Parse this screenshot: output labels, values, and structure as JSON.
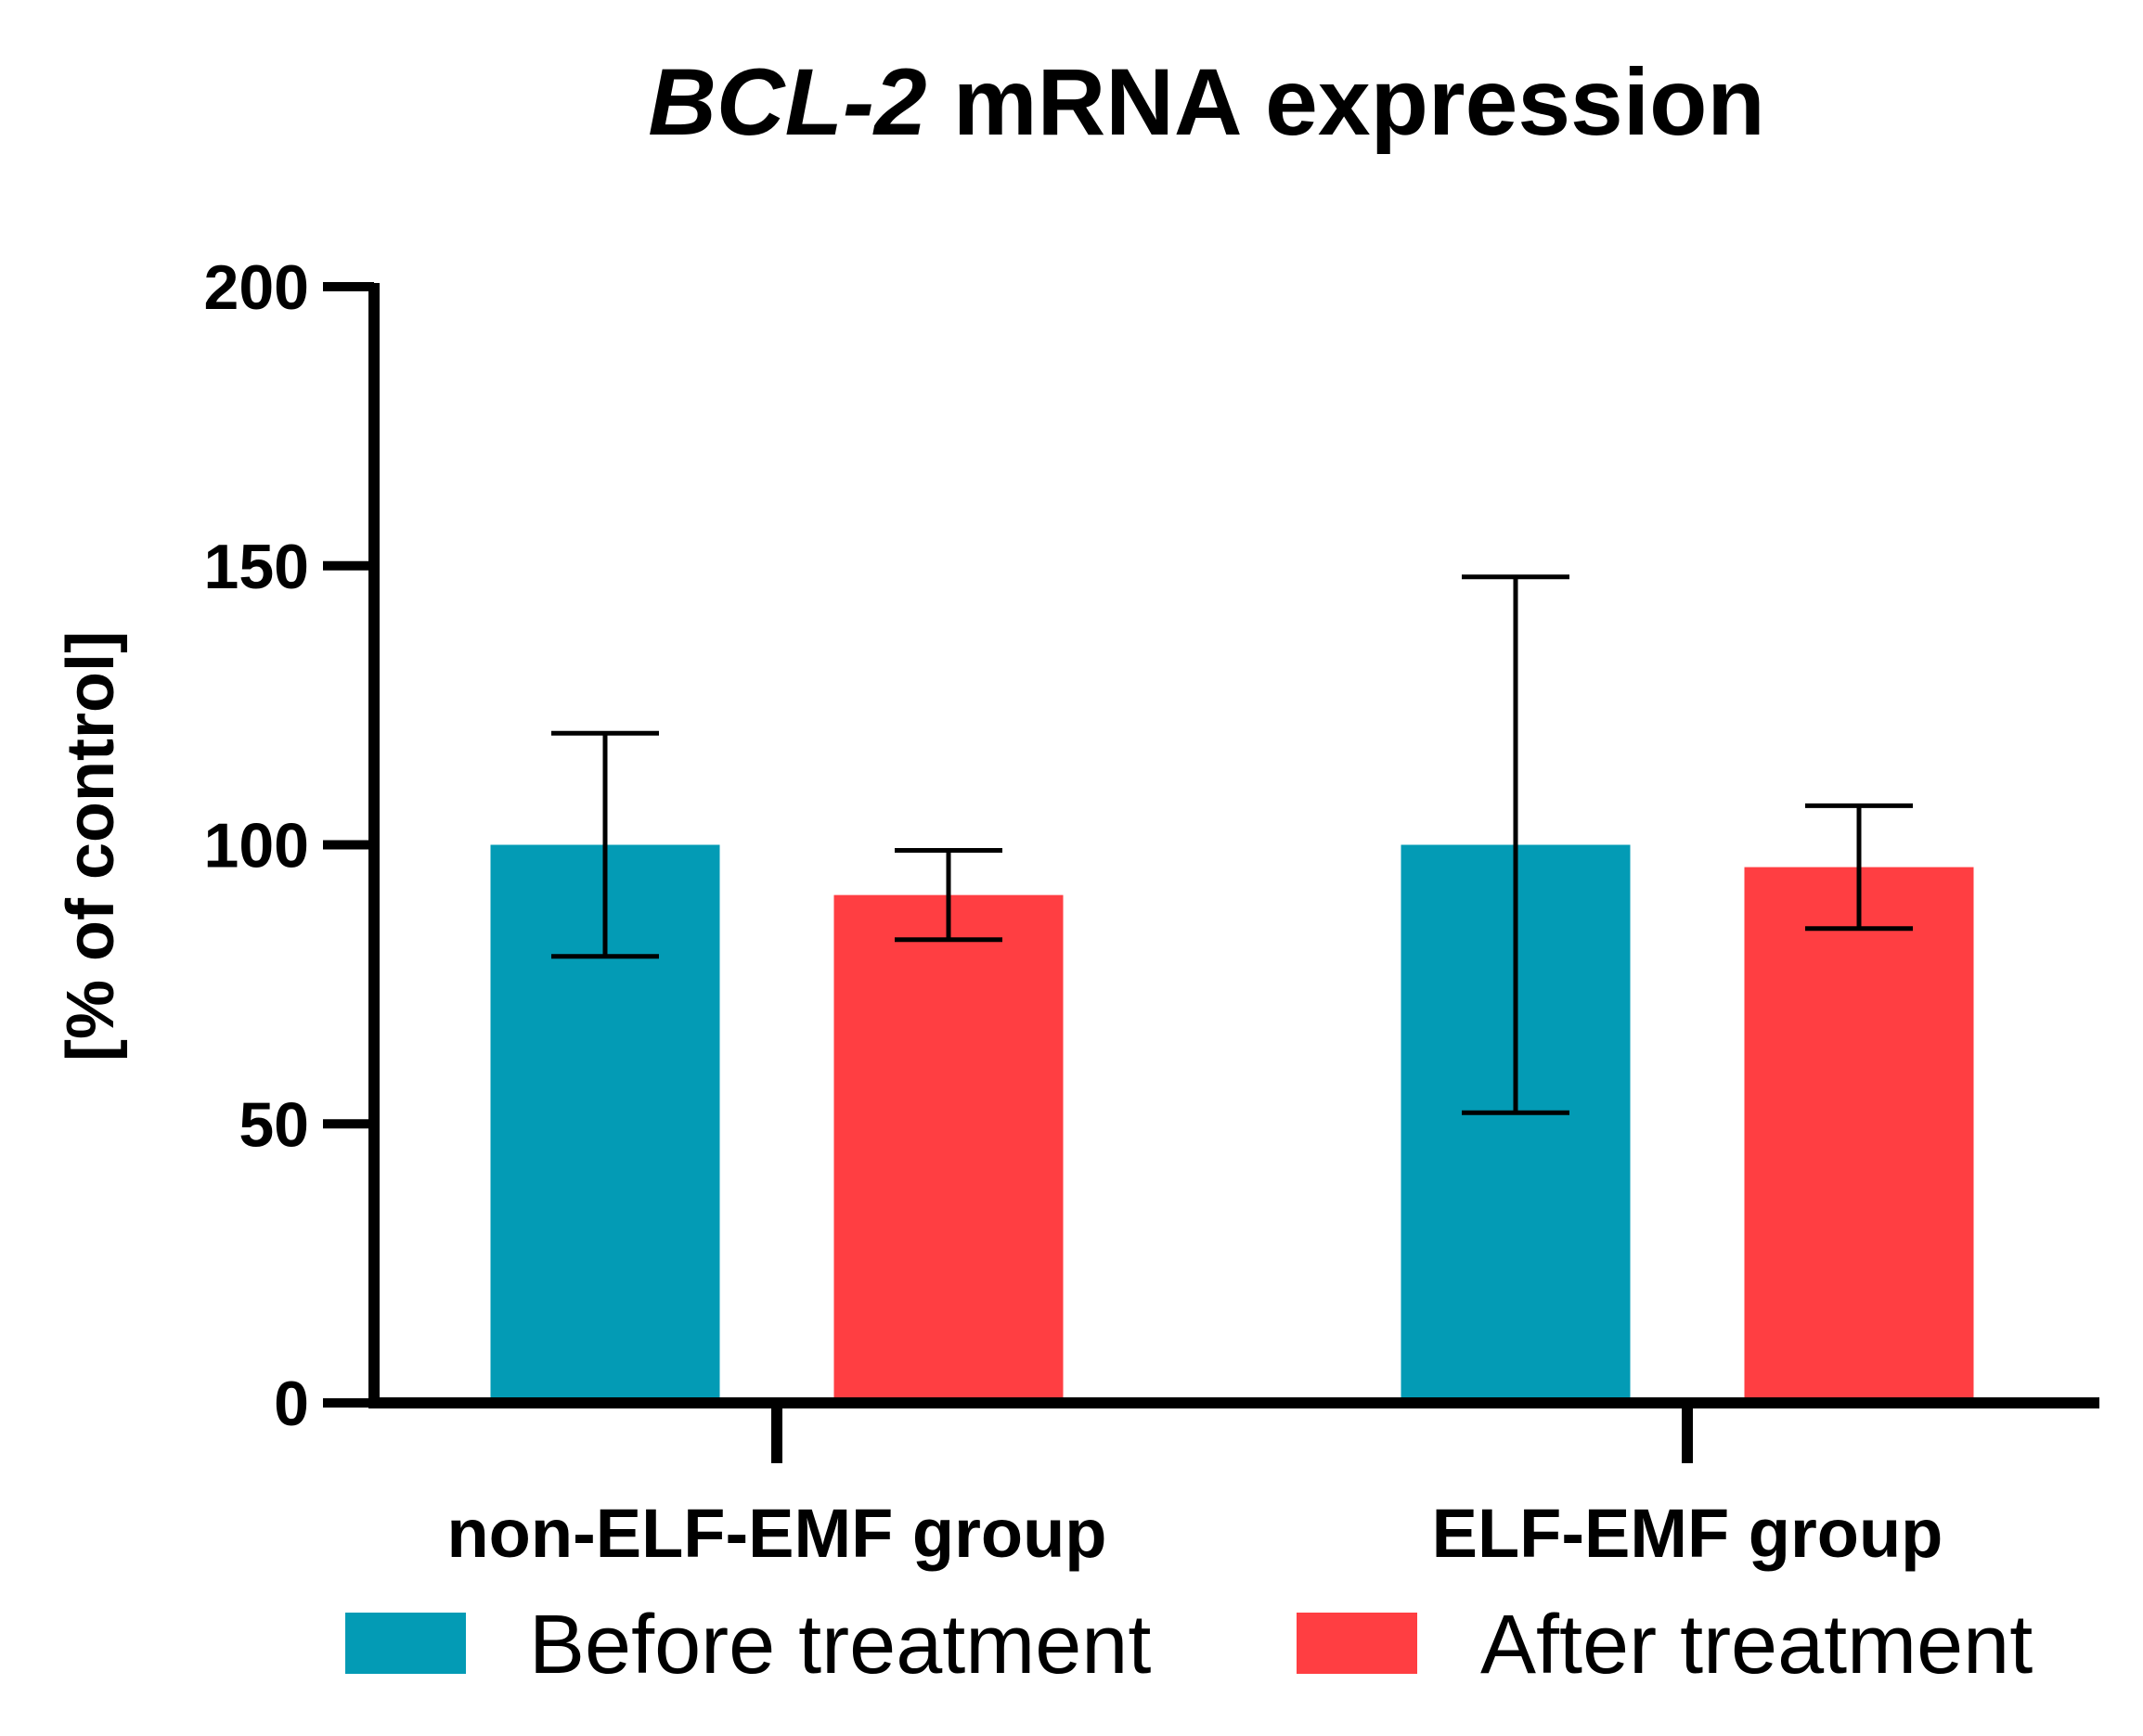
{
  "chart_data": {
    "type": "bar",
    "title_italic": "BCL-2",
    "title_rest": " mRNA expression",
    "xlabel": "",
    "ylabel": "[% of control]",
    "ylim": [
      0,
      200
    ],
    "yticks": [
      "0",
      "50",
      "100",
      "150",
      "200"
    ],
    "categories": [
      "non-ELF-EMF group",
      "ELF-EMF group"
    ],
    "series": [
      {
        "name": "Before treatment",
        "color": "#039BB5",
        "values": [
          100,
          100
        ],
        "error_low": [
          80,
          52
        ],
        "error_high": [
          120,
          148
        ]
      },
      {
        "name": "After treatment",
        "color": "#FF3E42",
        "values": [
          91,
          96
        ],
        "error_low": [
          83,
          85
        ],
        "error_high": [
          99,
          107
        ]
      }
    ],
    "legend_position": "bottom"
  }
}
